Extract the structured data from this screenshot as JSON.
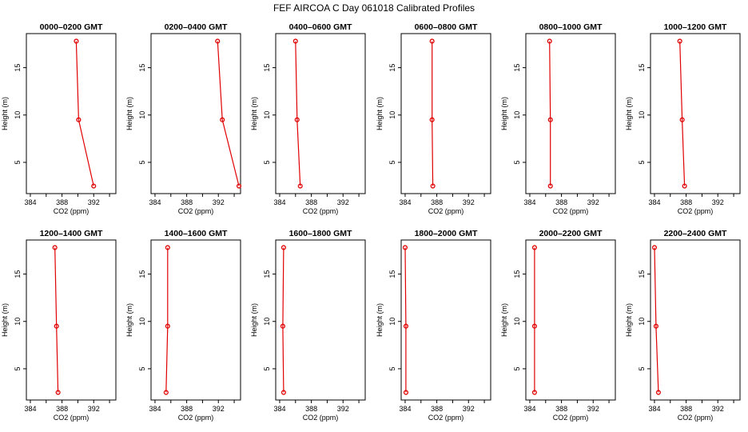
{
  "title": "FEF AIRCOA C  Day 061018  Calibrated Profiles",
  "chart_data": {
    "type": "line",
    "title": "FEF AIRCOA C  Day 061018  Calibrated Profiles",
    "xlabel": "CO2 (ppm)",
    "ylabel": "Height (m)",
    "xlim": [
      383.5,
      394.8
    ],
    "ylim": [
      1.7,
      18.6
    ],
    "xticks": [
      "384",
      "388",
      "392"
    ],
    "xtick_values": [
      384,
      386,
      388,
      390,
      392,
      394
    ],
    "yticks": [
      "5",
      "10",
      "15"
    ],
    "ytick_values": [
      5,
      10,
      15
    ],
    "grid": false,
    "panels": [
      {
        "title": "0000–0200 GMT",
        "points": [
          {
            "x": 392.0,
            "y": 2.5
          },
          {
            "x": 390.1,
            "y": 9.5
          },
          {
            "x": 389.8,
            "y": 17.8
          }
        ]
      },
      {
        "title": "0200–0400 GMT",
        "points": [
          {
            "x": 394.6,
            "y": 2.5
          },
          {
            "x": 392.5,
            "y": 9.5
          },
          {
            "x": 391.9,
            "y": 17.8
          }
        ]
      },
      {
        "title": "0400–0600 GMT",
        "points": [
          {
            "x": 386.6,
            "y": 2.5
          },
          {
            "x": 386.2,
            "y": 9.5
          },
          {
            "x": 386.0,
            "y": 17.8
          }
        ]
      },
      {
        "title": "0600–0800 GMT",
        "points": [
          {
            "x": 387.5,
            "y": 2.5
          },
          {
            "x": 387.4,
            "y": 9.5
          },
          {
            "x": 387.4,
            "y": 17.8
          }
        ]
      },
      {
        "title": "0800–1000 GMT",
        "points": [
          {
            "x": 386.6,
            "y": 2.5
          },
          {
            "x": 386.6,
            "y": 9.5
          },
          {
            "x": 386.5,
            "y": 17.8
          }
        ]
      },
      {
        "title": "1000–1200 GMT",
        "points": [
          {
            "x": 387.8,
            "y": 2.5
          },
          {
            "x": 387.5,
            "y": 9.5
          },
          {
            "x": 387.2,
            "y": 17.8
          }
        ]
      },
      {
        "title": "1200–1400 GMT",
        "points": [
          {
            "x": 387.5,
            "y": 2.5
          },
          {
            "x": 387.3,
            "y": 9.5
          },
          {
            "x": 387.1,
            "y": 17.8
          }
        ]
      },
      {
        "title": "1400–1600 GMT",
        "points": [
          {
            "x": 385.4,
            "y": 2.5
          },
          {
            "x": 385.6,
            "y": 9.5
          },
          {
            "x": 385.6,
            "y": 17.8
          }
        ]
      },
      {
        "title": "1600–1800 GMT",
        "points": [
          {
            "x": 384.5,
            "y": 2.5
          },
          {
            "x": 384.4,
            "y": 9.5
          },
          {
            "x": 384.5,
            "y": 17.8
          }
        ]
      },
      {
        "title": "1800–2000 GMT",
        "points": [
          {
            "x": 384.1,
            "y": 2.5
          },
          {
            "x": 384.1,
            "y": 9.5
          },
          {
            "x": 384.0,
            "y": 17.8
          }
        ]
      },
      {
        "title": "2000–2200 GMT",
        "points": [
          {
            "x": 384.6,
            "y": 2.5
          },
          {
            "x": 384.6,
            "y": 9.5
          },
          {
            "x": 384.6,
            "y": 17.8
          }
        ]
      },
      {
        "title": "2200–2400 GMT",
        "points": [
          {
            "x": 384.5,
            "y": 2.5
          },
          {
            "x": 384.2,
            "y": 9.5
          },
          {
            "x": 384.0,
            "y": 17.8
          }
        ]
      }
    ]
  },
  "colors": {
    "profile": "#e00000",
    "axes": "#000000",
    "background": "#ffffff"
  }
}
